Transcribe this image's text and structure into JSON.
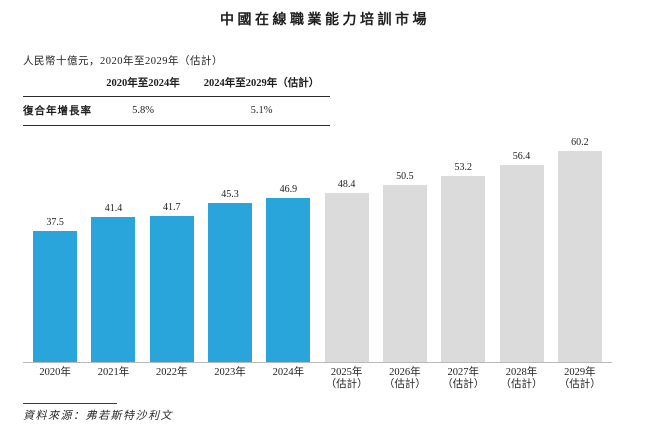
{
  "page": {
    "title": "中國在線職業能力培訓市場",
    "subtitle": "人民幣十億元，2020年至2029年（估計）",
    "source": "資料來源：弗若斯特沙利文"
  },
  "cagr_table": {
    "row_label": "復合年增長率",
    "col_headers": [
      "2020年至2024年",
      "2024年至2029年（估計）"
    ],
    "values": [
      "5.8%",
      "5.1%"
    ]
  },
  "chart_data": {
    "type": "bar",
    "title": "中國在線職業能力培訓市場",
    "unit_label": "人民幣十億元",
    "xlabel": "",
    "ylabel": "",
    "ylim": [
      0,
      65
    ],
    "grid": false,
    "legend": false,
    "bars": [
      {
        "label": "2020年",
        "note": "",
        "value": 37.5,
        "series": "actual"
      },
      {
        "label": "2021年",
        "note": "",
        "value": 41.4,
        "series": "actual"
      },
      {
        "label": "2022年",
        "note": "",
        "value": 41.7,
        "series": "actual"
      },
      {
        "label": "2023年",
        "note": "",
        "value": 45.3,
        "series": "actual"
      },
      {
        "label": "2024年",
        "note": "",
        "value": 46.9,
        "series": "actual"
      },
      {
        "label": "2025年",
        "note": "（估計）",
        "value": 48.4,
        "series": "estimate"
      },
      {
        "label": "2026年",
        "note": "（估計）",
        "value": 50.5,
        "series": "estimate"
      },
      {
        "label": "2027年",
        "note": "（估計）",
        "value": 53.2,
        "series": "estimate"
      },
      {
        "label": "2028年",
        "note": "（估計）",
        "value": 56.4,
        "series": "estimate"
      },
      {
        "label": "2029年",
        "note": "（估計）",
        "value": 60.2,
        "series": "estimate"
      }
    ],
    "colors": {
      "actual": "#2AA5DC",
      "estimate": "#DBDBDB"
    },
    "axis_color": "#B9B9B9"
  }
}
